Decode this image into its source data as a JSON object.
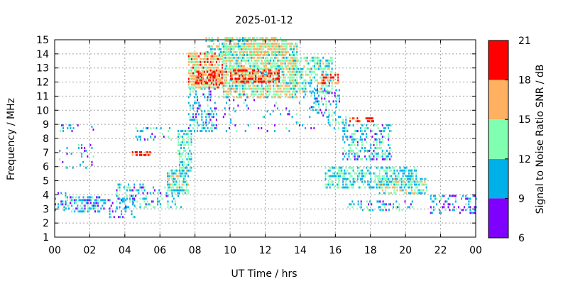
{
  "chart_data": {
    "type": "heatmap",
    "title": "2025-01-12",
    "xlabel": "UT Time / hrs",
    "ylabel": "Frequency / MHz",
    "xlim": [
      0,
      24
    ],
    "ylim": [
      1,
      15
    ],
    "x_ticks": [
      "00",
      "02",
      "04",
      "06",
      "08",
      "10",
      "12",
      "14",
      "16",
      "18",
      "20",
      "22",
      "00"
    ],
    "y_ticks": [
      "1",
      "2",
      "3",
      "4",
      "5",
      "6",
      "7",
      "8",
      "9",
      "10",
      "11",
      "12",
      "13",
      "14",
      "15"
    ],
    "grid": true,
    "colorbar": {
      "label": "Signal to Noise Ratio SNR / dB",
      "range": [
        6,
        21
      ],
      "ticks": [
        "6",
        "9",
        "12",
        "15",
        "18",
        "21"
      ],
      "bands": [
        {
          "from": 6,
          "to": 9,
          "color": "#7f00ff"
        },
        {
          "from": 9,
          "to": 12,
          "color": "#00b0e8"
        },
        {
          "from": 12,
          "to": 15,
          "color": "#80ffb0"
        },
        {
          "from": 15,
          "to": 18,
          "color": "#ffb060"
        },
        {
          "from": 18,
          "to": 21,
          "color": "#ff0000"
        }
      ],
      "placement": "right"
    },
    "regions": [
      {
        "x": [
          0.0,
          0.6
        ],
        "y": [
          2.8,
          4.2
        ],
        "snr": 10,
        "density": 0.35
      },
      {
        "x": [
          0.6,
          2.6
        ],
        "y": [
          2.7,
          3.8
        ],
        "snr": 11,
        "density": 0.55
      },
      {
        "x": [
          0.2,
          1.4
        ],
        "y": [
          8.4,
          8.9
        ],
        "snr": 10,
        "density": 0.25
      },
      {
        "x": [
          2.0,
          2.4
        ],
        "y": [
          8.5,
          8.8
        ],
        "snr": 10,
        "density": 0.4
      },
      {
        "x": [
          0.0,
          2.2
        ],
        "y": [
          5.8,
          7.5
        ],
        "snr": 10,
        "density": 0.08
      },
      {
        "x": [
          2.6,
          4.6
        ],
        "y": [
          2.3,
          3.6
        ],
        "snr": 10,
        "density": 0.3
      },
      {
        "x": [
          3.5,
          5.2
        ],
        "y": [
          3.0,
          4.8
        ],
        "snr": 11,
        "density": 0.35
      },
      {
        "x": [
          4.4,
          5.4
        ],
        "y": [
          6.7,
          7.1
        ],
        "snr": 19,
        "density": 0.75
      },
      {
        "x": [
          5.0,
          7.2
        ],
        "y": [
          3.0,
          4.5
        ],
        "snr": 11,
        "density": 0.3
      },
      {
        "x": [
          6.4,
          7.6
        ],
        "y": [
          4.0,
          5.8
        ],
        "snr": 13,
        "density": 0.7
      },
      {
        "x": [
          7.0,
          7.8
        ],
        "y": [
          5.6,
          8.6
        ],
        "snr": 12,
        "density": 0.6
      },
      {
        "x": [
          7.6,
          9.2
        ],
        "y": [
          8.4,
          11.5
        ],
        "snr": 11,
        "density": 0.35
      },
      {
        "x": [
          7.6,
          9.6
        ],
        "y": [
          11.5,
          13.9
        ],
        "snr": 16,
        "density": 0.8
      },
      {
        "x": [
          8.0,
          9.8
        ],
        "y": [
          11.8,
          12.6
        ],
        "snr": 19,
        "density": 0.7
      },
      {
        "x": [
          8.6,
          11.0
        ],
        "y": [
          13.8,
          15.0
        ],
        "snr": 13,
        "density": 0.6
      },
      {
        "x": [
          9.6,
          13.8
        ],
        "y": [
          10.8,
          14.6
        ],
        "snr": 14,
        "density": 0.75
      },
      {
        "x": [
          10.0,
          12.8
        ],
        "y": [
          11.9,
          12.8
        ],
        "snr": 19,
        "density": 0.65
      },
      {
        "x": [
          11.0,
          13.2
        ],
        "y": [
          13.8,
          15.0
        ],
        "snr": 15,
        "density": 0.65
      },
      {
        "x": [
          13.6,
          15.8
        ],
        "y": [
          11.2,
          13.6
        ],
        "snr": 13,
        "density": 0.55
      },
      {
        "x": [
          15.2,
          16.2
        ],
        "y": [
          11.8,
          12.4
        ],
        "snr": 18,
        "density": 0.5
      },
      {
        "x": [
          14.6,
          16.2
        ],
        "y": [
          9.5,
          11.4
        ],
        "snr": 11,
        "density": 0.3
      },
      {
        "x": [
          15.4,
          16.6
        ],
        "y": [
          8.6,
          9.4
        ],
        "snr": 12,
        "density": 0.35
      },
      {
        "x": [
          16.8,
          18.2
        ],
        "y": [
          9.1,
          9.4
        ],
        "snr": 19,
        "density": 0.6
      },
      {
        "x": [
          16.4,
          19.2
        ],
        "y": [
          6.4,
          8.8
        ],
        "snr": 11,
        "density": 0.45
      },
      {
        "x": [
          15.4,
          20.6
        ],
        "y": [
          4.4,
          6.0
        ],
        "snr": 12,
        "density": 0.55
      },
      {
        "x": [
          18.4,
          21.2
        ],
        "y": [
          4.0,
          5.2
        ],
        "snr": 13,
        "density": 0.6
      },
      {
        "x": [
          16.6,
          20.4
        ],
        "y": [
          2.8,
          3.6
        ],
        "snr": 11,
        "density": 0.25
      },
      {
        "x": [
          21.4,
          24.0
        ],
        "y": [
          2.6,
          3.9
        ],
        "snr": 10,
        "density": 0.35
      },
      {
        "x": [
          8.0,
          14.8
        ],
        "y": [
          8.4,
          11.0
        ],
        "snr": 10,
        "density": 0.08
      },
      {
        "x": [
          4.6,
          6.6
        ],
        "y": [
          7.8,
          8.6
        ],
        "snr": 11,
        "density": 0.15
      }
    ]
  }
}
